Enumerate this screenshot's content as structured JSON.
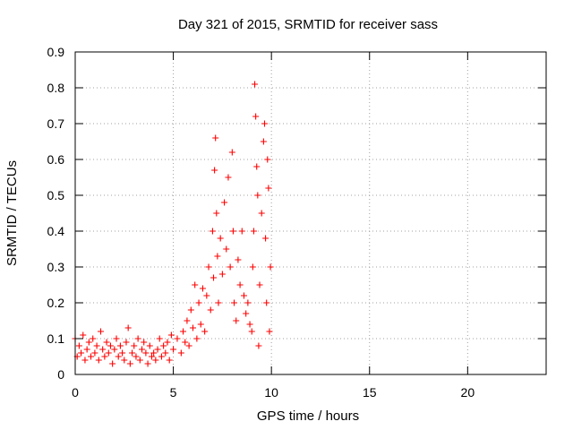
{
  "chart_data": {
    "type": "scatter",
    "title": "Day 321 of 2015, SRMTID for receiver sass",
    "xlabel": "GPS time / hours",
    "ylabel": "SRMTID / TECUs",
    "xlim": [
      0,
      24
    ],
    "ylim": [
      0,
      0.9
    ],
    "xticks": [
      0,
      5,
      10,
      15,
      20
    ],
    "yticks": [
      0,
      0.1,
      0.2,
      0.3,
      0.4,
      0.5,
      0.6,
      0.7,
      0.8,
      0.9
    ],
    "xtick_labels": [
      "0",
      "5",
      "10",
      "15",
      "20"
    ],
    "ytick_labels": [
      "0",
      "0.1",
      "0.2",
      "0.3",
      "0.4",
      "0.5",
      "0.6",
      "0.7",
      "0.8",
      "0.9"
    ],
    "grid": true,
    "marker": "+",
    "color": "#ff0000",
    "series": [
      {
        "name": "SRMTID",
        "points": [
          [
            0.0,
            0.1
          ],
          [
            0.1,
            0.05
          ],
          [
            0.2,
            0.08
          ],
          [
            0.3,
            0.06
          ],
          [
            0.4,
            0.11
          ],
          [
            0.5,
            0.04
          ],
          [
            0.6,
            0.07
          ],
          [
            0.7,
            0.09
          ],
          [
            0.8,
            0.05
          ],
          [
            0.9,
            0.1
          ],
          [
            1.0,
            0.06
          ],
          [
            1.1,
            0.08
          ],
          [
            1.2,
            0.04
          ],
          [
            1.3,
            0.12
          ],
          [
            1.4,
            0.07
          ],
          [
            1.5,
            0.05
          ],
          [
            1.6,
            0.09
          ],
          [
            1.7,
            0.06
          ],
          [
            1.8,
            0.08
          ],
          [
            1.9,
            0.03
          ],
          [
            2.0,
            0.07
          ],
          [
            2.1,
            0.1
          ],
          [
            2.2,
            0.05
          ],
          [
            2.3,
            0.08
          ],
          [
            2.4,
            0.06
          ],
          [
            2.5,
            0.04
          ],
          [
            2.6,
            0.09
          ],
          [
            2.7,
            0.13
          ],
          [
            2.8,
            0.03
          ],
          [
            2.9,
            0.06
          ],
          [
            3.0,
            0.08
          ],
          [
            3.1,
            0.05
          ],
          [
            3.2,
            0.1
          ],
          [
            3.3,
            0.04
          ],
          [
            3.4,
            0.07
          ],
          [
            3.5,
            0.09
          ],
          [
            3.6,
            0.06
          ],
          [
            3.7,
            0.03
          ],
          [
            3.8,
            0.08
          ],
          [
            3.9,
            0.05
          ],
          [
            4.0,
            0.06
          ],
          [
            4.1,
            0.04
          ],
          [
            4.2,
            0.07
          ],
          [
            4.3,
            0.1
          ],
          [
            4.4,
            0.05
          ],
          [
            4.5,
            0.08
          ],
          [
            4.6,
            0.06
          ],
          [
            4.7,
            0.09
          ],
          [
            4.8,
            0.04
          ],
          [
            4.9,
            0.11
          ],
          [
            5.0,
            0.07
          ],
          [
            5.2,
            0.1
          ],
          [
            5.4,
            0.06
          ],
          [
            5.5,
            0.12
          ],
          [
            5.6,
            0.09
          ],
          [
            5.7,
            0.15
          ],
          [
            5.8,
            0.08
          ],
          [
            5.9,
            0.18
          ],
          [
            6.0,
            0.13
          ],
          [
            6.1,
            0.25
          ],
          [
            6.2,
            0.1
          ],
          [
            6.3,
            0.2
          ],
          [
            6.4,
            0.14
          ],
          [
            6.5,
            0.24
          ],
          [
            6.6,
            0.12
          ],
          [
            6.7,
            0.22
          ],
          [
            6.8,
            0.3
          ],
          [
            6.9,
            0.18
          ],
          [
            7.0,
            0.4
          ],
          [
            7.05,
            0.27
          ],
          [
            7.1,
            0.57
          ],
          [
            7.15,
            0.66
          ],
          [
            7.2,
            0.45
          ],
          [
            7.25,
            0.33
          ],
          [
            7.3,
            0.2
          ],
          [
            7.4,
            0.38
          ],
          [
            7.5,
            0.28
          ],
          [
            7.6,
            0.48
          ],
          [
            7.7,
            0.35
          ],
          [
            7.8,
            0.55
          ],
          [
            7.9,
            0.3
          ],
          [
            8.0,
            0.62
          ],
          [
            8.05,
            0.4
          ],
          [
            8.1,
            0.2
          ],
          [
            8.2,
            0.15
          ],
          [
            8.3,
            0.32
          ],
          [
            8.4,
            0.25
          ],
          [
            8.5,
            0.4
          ],
          [
            8.6,
            0.22
          ],
          [
            8.7,
            0.17
          ],
          [
            8.8,
            0.2
          ],
          [
            8.9,
            0.14
          ],
          [
            9.0,
            0.12
          ],
          [
            9.05,
            0.3
          ],
          [
            9.1,
            0.4
          ],
          [
            9.15,
            0.81
          ],
          [
            9.2,
            0.72
          ],
          [
            9.25,
            0.58
          ],
          [
            9.3,
            0.5
          ],
          [
            9.35,
            0.08
          ],
          [
            9.4,
            0.25
          ],
          [
            9.5,
            0.45
          ],
          [
            9.6,
            0.65
          ],
          [
            9.65,
            0.7
          ],
          [
            9.7,
            0.38
          ],
          [
            9.75,
            0.2
          ],
          [
            9.8,
            0.6
          ],
          [
            9.85,
            0.52
          ],
          [
            9.9,
            0.12
          ],
          [
            9.95,
            0.3
          ]
        ]
      }
    ]
  }
}
